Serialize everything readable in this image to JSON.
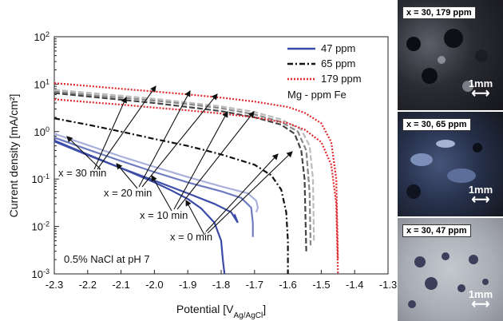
{
  "chart_data": {
    "type": "line",
    "xlabel_main": "Potential [V",
    "xlabel_sub": "Ag/AgCl",
    "xlabel_end": "]",
    "ylabel": "Current density [mA/cm²]",
    "xlim": [
      -2.3,
      -1.3
    ],
    "ylim_log": [
      0.001,
      100
    ],
    "x_ticks": [
      "-2.3",
      "-2.2",
      "-2.1",
      "-2.0",
      "-1.9",
      "-1.8",
      "-1.7",
      "-1.6",
      "-1.5",
      "-1.4",
      "-1.3"
    ],
    "y_tick_exponents": [
      "2",
      "1",
      "0",
      "-1",
      "-2",
      "-3"
    ],
    "y_tick_base": "10",
    "legend": [
      {
        "label": "47 ppm",
        "style": "solid",
        "color": "#3a4aa8"
      },
      {
        "label": "65 ppm",
        "style": "dashdot",
        "color": "#111111"
      },
      {
        "label": "179 ppm",
        "style": "dotted",
        "color": "#e0282c"
      }
    ],
    "legend_note": "Mg - ppm Fe",
    "annotations": {
      "t30": "x = 30 min",
      "t20": "x = 20 min",
      "t10": "x = 10 min",
      "t0": "x = 0 min",
      "medium": "0.5% NaCl at pH 7"
    },
    "series": [
      {
        "name": "47 ppm",
        "time": "0 min",
        "color": "#3a4aa8",
        "style": "solid",
        "x": [
          -2.3,
          -2.2,
          -2.1,
          -2.0,
          -1.95,
          -1.9,
          -1.86,
          -1.82,
          -1.8,
          -1.795,
          -1.79
        ],
        "y": [
          0.65,
          0.33,
          0.17,
          0.085,
          0.058,
          0.038,
          0.024,
          0.012,
          0.005,
          0.002,
          0.001
        ]
      },
      {
        "name": "47 ppm",
        "time": "10 min",
        "color": "#3d4ca8",
        "style": "solid",
        "x": [
          -2.3,
          -2.2,
          -2.1,
          -2.0,
          -1.9,
          -1.82,
          -1.77,
          -1.75,
          -1.76
        ],
        "y": [
          0.62,
          0.32,
          0.17,
          0.093,
          0.05,
          0.03,
          0.02,
          0.012,
          0.018
        ]
      },
      {
        "name": "47 ppm",
        "time": "20 min",
        "color": "#6f7bc0",
        "style": "solid",
        "x": [
          -2.3,
          -2.2,
          -2.1,
          -2.0,
          -1.9,
          -1.8,
          -1.74,
          -1.71,
          -1.705,
          -1.705
        ],
        "y": [
          0.75,
          0.42,
          0.24,
          0.14,
          0.085,
          0.055,
          0.04,
          0.025,
          0.012,
          0.006
        ]
      },
      {
        "name": "47 ppm",
        "time": "30 min",
        "color": "#a9b0da",
        "style": "solid",
        "x": [
          -2.3,
          -2.2,
          -2.1,
          -2.0,
          -1.9,
          -1.8,
          -1.72,
          -1.695,
          -1.69,
          -1.695
        ],
        "y": [
          0.9,
          0.52,
          0.3,
          0.18,
          0.11,
          0.07,
          0.05,
          0.035,
          0.025,
          0.02
        ]
      },
      {
        "name": "65 ppm",
        "time": "0 min",
        "color": "#111111",
        "style": "dashdot",
        "x": [
          -2.3,
          -2.2,
          -2.1,
          -2.0,
          -1.9,
          -1.8,
          -1.7,
          -1.65,
          -1.62,
          -1.605,
          -1.6,
          -1.6
        ],
        "y": [
          1.9,
          1.4,
          1.0,
          0.7,
          0.5,
          0.33,
          0.2,
          0.12,
          0.06,
          0.02,
          0.005,
          0.001
        ]
      },
      {
        "name": "65 ppm",
        "time": "10 min",
        "color": "#444444",
        "style": "dashed",
        "x": [
          -2.3,
          -2.2,
          -2.1,
          -2.0,
          -1.9,
          -1.8,
          -1.7,
          -1.62,
          -1.58,
          -1.56,
          -1.55,
          -1.545
        ],
        "y": [
          6.5,
          5.5,
          4.7,
          4.0,
          3.3,
          2.7,
          2.0,
          1.4,
          0.9,
          0.4,
          0.1,
          0.003
        ]
      },
      {
        "name": "65 ppm",
        "time": "20 min",
        "color": "#888888",
        "style": "dashed",
        "x": [
          -2.3,
          -2.2,
          -2.1,
          -2.0,
          -1.9,
          -1.8,
          -1.7,
          -1.62,
          -1.57,
          -1.545,
          -1.535,
          -1.532
        ],
        "y": [
          7.0,
          6.0,
          5.2,
          4.5,
          3.8,
          3.1,
          2.3,
          1.6,
          1.0,
          0.4,
          0.05,
          0.004
        ]
      },
      {
        "name": "65 ppm",
        "time": "30 min",
        "color": "#bbbbbb",
        "style": "dashed",
        "x": [
          -2.3,
          -2.2,
          -2.1,
          -2.0,
          -1.9,
          -1.8,
          -1.7,
          -1.62,
          -1.56,
          -1.535,
          -1.525,
          -1.522
        ],
        "y": [
          7.6,
          6.6,
          5.7,
          4.9,
          4.1,
          3.4,
          2.6,
          1.8,
          1.1,
          0.5,
          0.1,
          0.005
        ]
      },
      {
        "name": "179 ppm",
        "time": "0 min",
        "color": "#e0282c",
        "style": "dotted",
        "x": [
          -2.3,
          -2.2,
          -2.1,
          -2.0,
          -1.9,
          -1.8,
          -1.7,
          -1.6,
          -1.55,
          -1.5,
          -1.47,
          -1.455,
          -1.45
        ],
        "y": [
          4.8,
          4.2,
          3.7,
          3.2,
          2.8,
          2.4,
          2.0,
          1.5,
          1.1,
          0.6,
          0.2,
          0.03,
          0.001
        ]
      },
      {
        "name": "179 ppm",
        "time": "30 min",
        "color": "#e0282c",
        "style": "dotted",
        "x": [
          -2.3,
          -2.2,
          -2.1,
          -2.0,
          -1.9,
          -1.8,
          -1.7,
          -1.6,
          -1.55,
          -1.5,
          -1.47,
          -1.455,
          -1.45
        ],
        "y": [
          10.5,
          9.2,
          8.0,
          7.0,
          6.1,
          5.2,
          4.3,
          3.3,
          2.5,
          1.5,
          0.6,
          0.1,
          0.002
        ]
      }
    ]
  },
  "micrographs": [
    {
      "label": "x = 30, 179 ppm",
      "scale": "1mm",
      "tone": "dark"
    },
    {
      "label": "x = 30, 65 ppm",
      "scale": "1mm",
      "tone": "blue"
    },
    {
      "label": "x = 30, 47 ppm",
      "scale": "1mm",
      "tone": "light"
    }
  ]
}
